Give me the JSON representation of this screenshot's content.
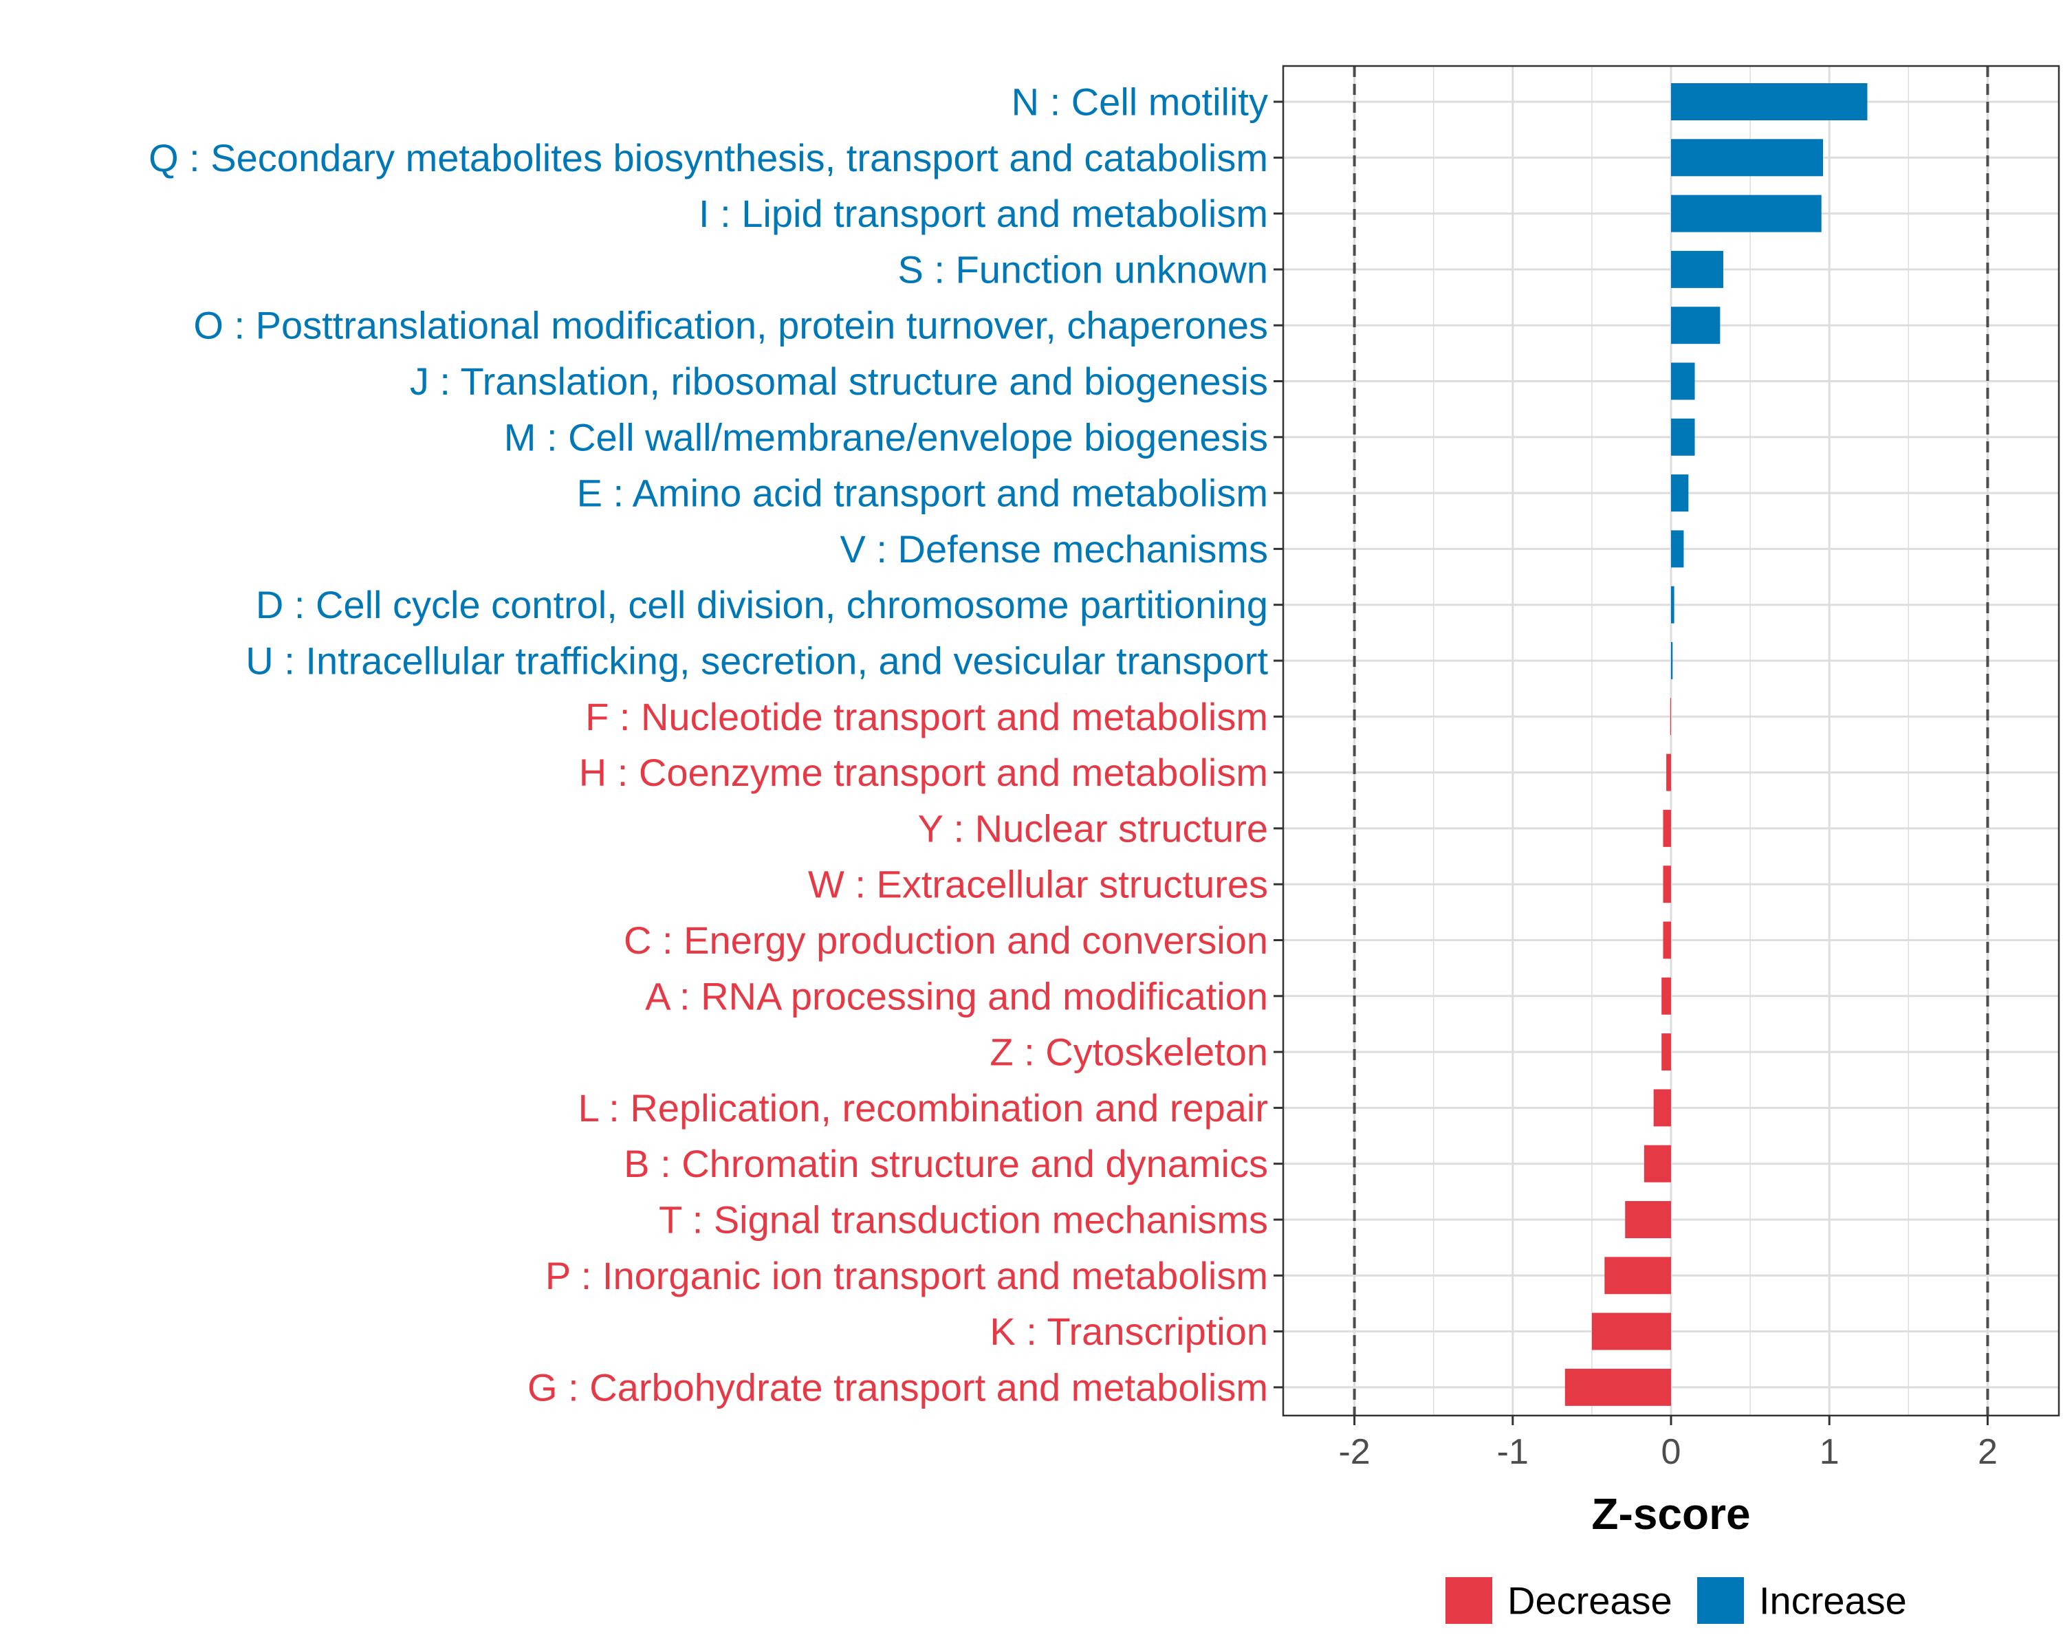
{
  "chart_data": {
    "type": "bar",
    "orientation": "horizontal",
    "title": "",
    "xlabel": "Z-score",
    "ylabel": "",
    "xlim": [
      -2.45,
      2.45
    ],
    "xticks": [
      -2,
      -1,
      0,
      1,
      2
    ],
    "xtick_labels": [
      "-2",
      "-1",
      "0",
      "1",
      "2"
    ],
    "reference_lines": [
      -2,
      2
    ],
    "grid": true,
    "legend_position": "bottom",
    "legend": [
      {
        "name": "Decrease",
        "color": "#e63946"
      },
      {
        "name": "Increase",
        "color": "#0077b6"
      }
    ],
    "colors": {
      "Increase": "#0077b6",
      "Decrease": "#e63946"
    },
    "categories": [
      {
        "label": "N : Cell motility",
        "value": 1.24,
        "group": "Increase"
      },
      {
        "label": "Q : Secondary metabolites biosynthesis, transport and catabolism",
        "value": 0.96,
        "group": "Increase"
      },
      {
        "label": "I : Lipid transport and metabolism",
        "value": 0.95,
        "group": "Increase"
      },
      {
        "label": "S : Function unknown",
        "value": 0.33,
        "group": "Increase"
      },
      {
        "label": "O : Posttranslational modification, protein turnover, chaperones",
        "value": 0.31,
        "group": "Increase"
      },
      {
        "label": "J : Translation, ribosomal structure and biogenesis",
        "value": 0.15,
        "group": "Increase"
      },
      {
        "label": "M : Cell wall/membrane/envelope biogenesis",
        "value": 0.15,
        "group": "Increase"
      },
      {
        "label": "E : Amino acid transport and metabolism",
        "value": 0.11,
        "group": "Increase"
      },
      {
        "label": "V : Defense mechanisms",
        "value": 0.08,
        "group": "Increase"
      },
      {
        "label": "D : Cell cycle control, cell division, chromosome partitioning",
        "value": 0.02,
        "group": "Increase"
      },
      {
        "label": "U : Intracellular trafficking, secretion, and vesicular transport",
        "value": 0.01,
        "group": "Increase"
      },
      {
        "label": "F : Nucleotide transport and metabolism",
        "value": -0.005,
        "group": "Decrease"
      },
      {
        "label": "H : Coenzyme transport and metabolism",
        "value": -0.03,
        "group": "Decrease"
      },
      {
        "label": "Y : Nuclear structure",
        "value": -0.05,
        "group": "Decrease"
      },
      {
        "label": "W : Extracellular structures",
        "value": -0.05,
        "group": "Decrease"
      },
      {
        "label": "C : Energy production and conversion",
        "value": -0.05,
        "group": "Decrease"
      },
      {
        "label": "A : RNA processing and modification",
        "value": -0.06,
        "group": "Decrease"
      },
      {
        "label": "Z : Cytoskeleton",
        "value": -0.06,
        "group": "Decrease"
      },
      {
        "label": "L : Replication, recombination and repair",
        "value": -0.11,
        "group": "Decrease"
      },
      {
        "label": "B : Chromatin structure and dynamics",
        "value": -0.17,
        "group": "Decrease"
      },
      {
        "label": "T : Signal transduction mechanisms",
        "value": -0.29,
        "group": "Decrease"
      },
      {
        "label": "P : Inorganic ion transport and metabolism",
        "value": -0.42,
        "group": "Decrease"
      },
      {
        "label": "K : Transcription",
        "value": -0.5,
        "group": "Decrease"
      },
      {
        "label": "G : Carbohydrate transport and metabolism",
        "value": -0.67,
        "group": "Decrease"
      }
    ]
  }
}
